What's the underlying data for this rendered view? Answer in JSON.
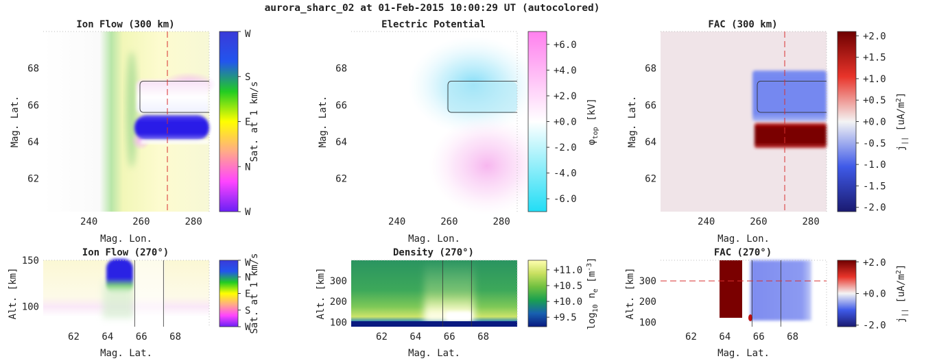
{
  "figure": {
    "title": "aurora_sharc_02 at 01-Feb-2015 10:00:29 UT (autocolored)"
  },
  "colors": {
    "cut_line": "#d83030",
    "arc_outline": "#333333",
    "fac_up": "#7a0000",
    "fac_down": "#3040e0",
    "fac_bg": "#f0e4e8"
  },
  "chart_data": [
    {
      "id": "ion-flow-map",
      "type": "heatmap",
      "title": "Ion Flow (300 km)",
      "xlabel": "Mag. Lon.",
      "ylabel": "Mag. Lat.",
      "xlim": [
        222.5,
        286
      ],
      "ylim": [
        60.2,
        70
      ],
      "xticks": [
        240,
        260,
        280
      ],
      "yticks": [
        62,
        64,
        66,
        68
      ],
      "cut_lon": 270,
      "arc": {
        "lon": [
          259.5,
          286
        ],
        "lat": [
          65.6,
          67.3
        ]
      },
      "colorbar": {
        "label": "Sat. at 1 km/s",
        "tick_labels": [
          "W",
          "N",
          "E",
          "S",
          "W"
        ],
        "colors": [
          "#6a20f5",
          "#ff44ff",
          "#ffaa88",
          "#ffff00",
          "#22cc22",
          "#2255ee",
          "#3a3ad8"
        ]
      }
    },
    {
      "id": "potential-map",
      "type": "heatmap",
      "title": "Electric Potential",
      "xlabel": "Mag. Lon.",
      "ylabel": "Mag. Lat.",
      "xlim": [
        222.5,
        286
      ],
      "ylim": [
        60.2,
        70
      ],
      "xticks": [
        240,
        260,
        280
      ],
      "yticks": [
        62,
        64,
        66,
        68
      ],
      "arc": {
        "lon": [
          259.5,
          286
        ],
        "lat": [
          65.6,
          67.3
        ]
      },
      "colorbar": {
        "label": "φ_top [kV]",
        "range": [
          -7,
          7
        ],
        "ticks": [
          -6,
          -4,
          -2,
          0,
          2,
          4,
          6
        ],
        "tick_labels": [
          "-6.0",
          "-4.0",
          "-2.0",
          "+0.0",
          "+2.0",
          "+4.0",
          "+6.0"
        ],
        "colors": [
          "#22ddf5",
          "#ffffff",
          "#ff80ee"
        ]
      }
    },
    {
      "id": "fac-map",
      "type": "heatmap",
      "title": "FAC (300 km)",
      "xlabel": "Mag. Lon.",
      "ylabel": "Mag. Lat.",
      "xlim": [
        222.5,
        286
      ],
      "ylim": [
        60.2,
        70
      ],
      "xticks": [
        240,
        260,
        280
      ],
      "yticks": [
        62,
        64,
        66,
        68
      ],
      "cut_lon": 270,
      "arc": {
        "lon": [
          259.5,
          286
        ],
        "lat": [
          65.6,
          67.3
        ]
      },
      "colorbar": {
        "label": "j_|| [uA/m²]",
        "range": [
          -2.1,
          2.1
        ],
        "ticks": [
          -2,
          -1.5,
          -1,
          -0.5,
          0,
          0.5,
          1,
          1.5,
          2
        ],
        "tick_labels": [
          "-2.0",
          "-1.5",
          "-1.0",
          "-0.5",
          "+0.0",
          "+0.5",
          "+1.0",
          "+1.5",
          "+2.0"
        ],
        "colors": [
          "#1a1a70",
          "#3f5ae8",
          "#f4f4f4",
          "#e8342a",
          "#6e0000"
        ]
      }
    },
    {
      "id": "ion-flow-slice",
      "type": "heatmap",
      "title": "Ion Flow (270°)",
      "xlabel": "Mag. Lat.",
      "ylabel": "Alt. [km]",
      "xlim": [
        60.2,
        70
      ],
      "ylim": [
        78,
        150
      ],
      "xticks": [
        62,
        64,
        66,
        68
      ],
      "yticks": [
        100,
        150
      ],
      "arc_lat": [
        65.6,
        67.3
      ],
      "colorbar": {
        "label": "Sat. at 1 km/s",
        "tick_labels": [
          "W",
          "S",
          "E",
          "N",
          "W"
        ],
        "colors": [
          "#6a20f5",
          "#ff44ff",
          "#ffaa88",
          "#ffff00",
          "#22cc22",
          "#2255ee",
          "#3a3ad8"
        ]
      }
    },
    {
      "id": "density-slice",
      "type": "heatmap",
      "title": "Density (270°)",
      "xlabel": "Mag. Lat.",
      "ylabel": "Alt. [km]",
      "xlim": [
        60.2,
        70
      ],
      "ylim": [
        78,
        400
      ],
      "xticks": [
        62,
        64,
        66,
        68
      ],
      "yticks": [
        100,
        200,
        300
      ],
      "arc_lat": [
        65.6,
        67.3
      ],
      "colorbar": {
        "label": "log10 n_e [m⁻³]",
        "range": [
          9.2,
          11.3
        ],
        "ticks": [
          9.5,
          10,
          10.5,
          11
        ],
        "tick_labels": [
          "+9.5",
          "+10.0",
          "+10.5",
          "+11.0"
        ],
        "colors": [
          "#0a1a80",
          "#1860b0",
          "#1aa050",
          "#70c040",
          "#c8e060",
          "#ffffb0"
        ]
      }
    },
    {
      "id": "fac-slice",
      "type": "heatmap",
      "title": "FAC (270°)",
      "xlabel": "Mag. Lat.",
      "ylabel": "Alt. [km]",
      "xlim": [
        60.2,
        70
      ],
      "ylim": [
        78,
        400
      ],
      "xticks": [
        62,
        64,
        66,
        68
      ],
      "yticks": [
        100,
        200,
        300
      ],
      "cut_alt": 300,
      "arc_lat": [
        65.6,
        67.3
      ],
      "colorbar": {
        "label": "j_|| [uA/m²]",
        "range": [
          -2.1,
          2.1
        ],
        "ticks": [
          -2,
          0,
          2
        ],
        "tick_labels": [
          "-2.0",
          "+0.0",
          "+2.0"
        ],
        "colors": [
          "#1a1a70",
          "#3f5ae8",
          "#f4f4f4",
          "#e8342a",
          "#6e0000"
        ]
      }
    }
  ]
}
